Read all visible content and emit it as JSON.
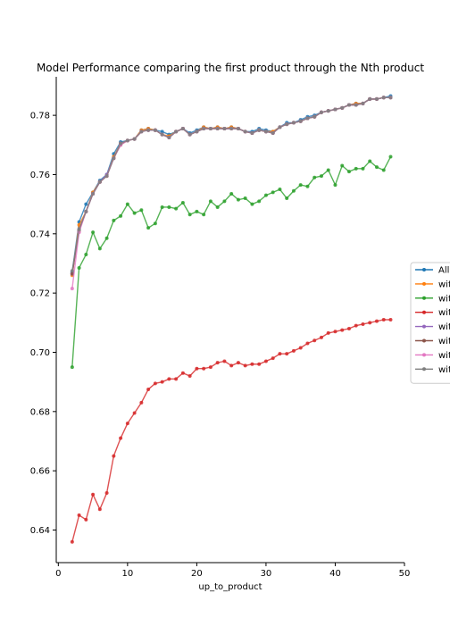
{
  "chart_data": {
    "type": "line",
    "title": "Model Performance comparing the first product through the Nth product",
    "xlabel": "up_to_product",
    "ylabel": "",
    "xlim": [
      -0.3,
      50
    ],
    "ylim": [
      0.629,
      0.793
    ],
    "xticks": [
      0,
      10,
      20,
      30,
      40,
      50
    ],
    "yticks": [
      0.64,
      0.66,
      0.68,
      0.7,
      0.72,
      0.74,
      0.76,
      0.78
    ],
    "ytick_labels": [
      "0.64",
      "0.66",
      "0.68",
      "0.70",
      "0.72",
      "0.74",
      "0.76",
      "0.78"
    ],
    "grid": false,
    "legend_position": "right",
    "x": [
      2,
      3,
      4,
      5,
      6,
      7,
      8,
      9,
      10,
      11,
      12,
      13,
      14,
      15,
      16,
      17,
      18,
      19,
      20,
      21,
      22,
      23,
      24,
      25,
      26,
      27,
      28,
      29,
      30,
      31,
      32,
      33,
      34,
      35,
      36,
      37,
      38,
      39,
      40,
      41,
      42,
      43,
      44,
      45,
      46,
      47,
      48
    ],
    "series": [
      {
        "name": "All",
        "color": "#1f77b4",
        "marker": "circle",
        "values": [
          0.727,
          0.744,
          0.75,
          0.754,
          0.758,
          0.76,
          0.767,
          0.771,
          0.7715,
          0.772,
          0.775,
          0.7755,
          0.775,
          0.7745,
          0.7735,
          0.7745,
          0.7755,
          0.774,
          0.775,
          0.776,
          0.7755,
          0.776,
          0.7755,
          0.776,
          0.7755,
          0.7745,
          0.7745,
          0.7755,
          0.775,
          0.7745,
          0.776,
          0.7775,
          0.7775,
          0.7785,
          0.7795,
          0.78,
          0.781,
          0.7815,
          0.782,
          0.7825,
          0.7835,
          0.784,
          0.784,
          0.7855,
          0.7855,
          0.786,
          0.7865
        ]
      },
      {
        "name": "wit",
        "color": "#ff7f0e",
        "marker": "circle",
        "values": [
          0.726,
          0.743,
          0.7475,
          0.754,
          0.7575,
          0.7595,
          0.766,
          0.7705,
          0.7715,
          0.772,
          0.775,
          0.7755,
          0.775,
          0.7735,
          0.773,
          0.7745,
          0.7755,
          0.7735,
          0.7745,
          0.776,
          0.7755,
          0.776,
          0.7755,
          0.776,
          0.7755,
          0.7745,
          0.774,
          0.775,
          0.7745,
          0.7745,
          0.776,
          0.777,
          0.7775,
          0.778,
          0.779,
          0.7795,
          0.781,
          0.7815,
          0.782,
          0.7825,
          0.7835,
          0.784,
          0.784,
          0.7855,
          0.7855,
          0.786,
          0.786
        ]
      },
      {
        "name": "wit",
        "color": "#2ca02c",
        "marker": "circle",
        "values": [
          0.695,
          0.7285,
          0.733,
          0.7405,
          0.735,
          0.7385,
          0.7445,
          0.746,
          0.75,
          0.747,
          0.748,
          0.742,
          0.7435,
          0.749,
          0.749,
          0.7485,
          0.7505,
          0.7465,
          0.7475,
          0.7465,
          0.751,
          0.749,
          0.751,
          0.7535,
          0.7515,
          0.752,
          0.75,
          0.751,
          0.753,
          0.754,
          0.755,
          0.752,
          0.7545,
          0.7565,
          0.756,
          0.759,
          0.7595,
          0.7615,
          0.7565,
          0.763,
          0.761,
          0.762,
          0.762,
          0.7645,
          0.7625,
          0.7615,
          0.766
        ]
      },
      {
        "name": "wit",
        "color": "#d62728",
        "marker": "circle",
        "values": [
          0.636,
          0.645,
          0.6435,
          0.652,
          0.647,
          0.6525,
          0.665,
          0.671,
          0.676,
          0.6795,
          0.683,
          0.6875,
          0.6895,
          0.69,
          0.691,
          0.691,
          0.693,
          0.692,
          0.6945,
          0.6945,
          0.695,
          0.6965,
          0.697,
          0.6955,
          0.6965,
          0.6955,
          0.696,
          0.696,
          0.697,
          0.698,
          0.6995,
          0.6995,
          0.7005,
          0.7015,
          0.703,
          0.704,
          0.705,
          0.7065,
          0.707,
          0.7075,
          0.708,
          0.709,
          0.7095,
          0.71,
          0.7105,
          0.711,
          0.711
        ]
      },
      {
        "name": "wit",
        "color": "#9467bd",
        "marker": "circle",
        "values": [
          0.7265,
          0.7415,
          0.7475,
          0.7535,
          0.7575,
          0.76,
          0.7655,
          0.7705,
          0.7715,
          0.772,
          0.7745,
          0.775,
          0.775,
          0.7735,
          0.7725,
          0.7745,
          0.7755,
          0.7735,
          0.7745,
          0.7755,
          0.7755,
          0.7755,
          0.7755,
          0.7755,
          0.7755,
          0.7745,
          0.774,
          0.775,
          0.7745,
          0.774,
          0.776,
          0.777,
          0.7775,
          0.778,
          0.779,
          0.7795,
          0.781,
          0.7815,
          0.782,
          0.7825,
          0.7835,
          0.7835,
          0.784,
          0.7855,
          0.7855,
          0.786,
          0.786
        ]
      },
      {
        "name": "wit",
        "color": "#8c564b",
        "marker": "circle",
        "values": [
          0.7265,
          0.741,
          0.7475,
          0.7535,
          0.7575,
          0.7595,
          0.7655,
          0.77,
          0.7715,
          0.772,
          0.7745,
          0.775,
          0.775,
          0.7735,
          0.7725,
          0.7745,
          0.7755,
          0.7735,
          0.7745,
          0.7755,
          0.7755,
          0.7755,
          0.7755,
          0.7755,
          0.7755,
          0.7745,
          0.774,
          0.775,
          0.7745,
          0.774,
          0.776,
          0.777,
          0.7775,
          0.778,
          0.779,
          0.7795,
          0.781,
          0.7815,
          0.782,
          0.7825,
          0.7835,
          0.7835,
          0.784,
          0.7855,
          0.7855,
          0.786,
          0.786
        ]
      },
      {
        "name": "wit",
        "color": "#e377c2",
        "marker": "circle",
        "values": [
          0.7215,
          0.7405,
          0.7475,
          0.7535,
          0.7575,
          0.7595,
          0.7655,
          0.77,
          0.7715,
          0.772,
          0.7745,
          0.775,
          0.775,
          0.7735,
          0.7725,
          0.7745,
          0.7755,
          0.7735,
          0.7745,
          0.7755,
          0.7755,
          0.7755,
          0.7755,
          0.7755,
          0.7755,
          0.7745,
          0.774,
          0.775,
          0.7745,
          0.774,
          0.776,
          0.777,
          0.7775,
          0.778,
          0.779,
          0.7795,
          0.781,
          0.7815,
          0.782,
          0.7825,
          0.7835,
          0.7835,
          0.784,
          0.7855,
          0.7855,
          0.786,
          0.786
        ]
      },
      {
        "name": "wit",
        "color": "#7f7f7f",
        "marker": "circle",
        "values": [
          0.7275,
          0.7415,
          0.7475,
          0.7535,
          0.7575,
          0.7595,
          0.7655,
          0.7705,
          0.7715,
          0.772,
          0.7745,
          0.775,
          0.775,
          0.7735,
          0.7725,
          0.7745,
          0.7755,
          0.7735,
          0.7745,
          0.7755,
          0.7755,
          0.7755,
          0.7755,
          0.7755,
          0.7755,
          0.7745,
          0.774,
          0.775,
          0.7745,
          0.774,
          0.776,
          0.777,
          0.7775,
          0.778,
          0.779,
          0.7795,
          0.781,
          0.7815,
          0.782,
          0.7825,
          0.7835,
          0.7835,
          0.784,
          0.7855,
          0.7855,
          0.786,
          0.786
        ]
      }
    ]
  }
}
